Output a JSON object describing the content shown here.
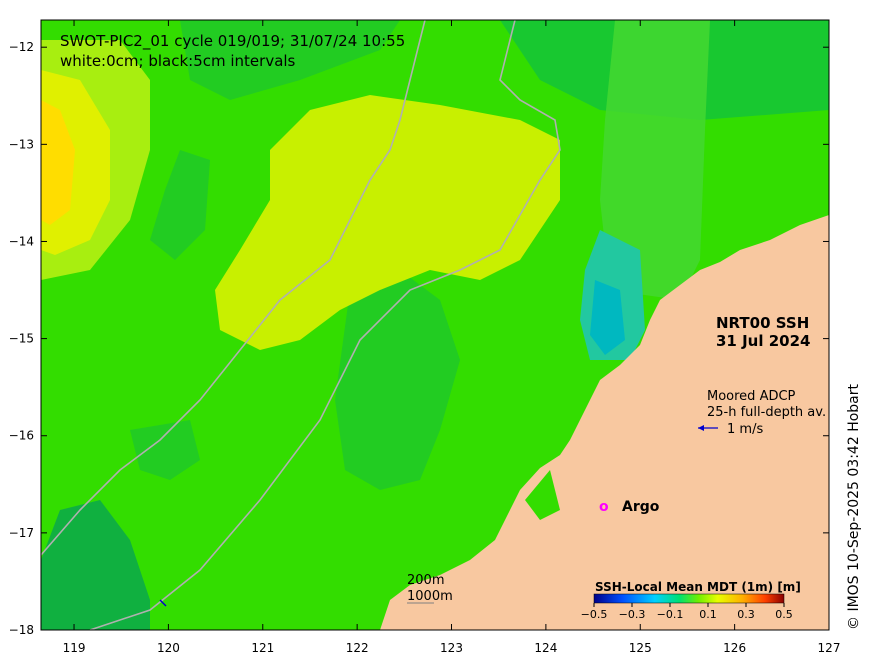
{
  "title": {
    "line1": "SWOT-PIC2_01 cycle 019/019; 31/07/24 10:55",
    "line2": "white:0cm; black:5cm intervals"
  },
  "product": {
    "name": "NRT00 SSH",
    "date": "31 Jul 2024"
  },
  "adcp": {
    "label1": "Moored ADCP",
    "label2": "25-h full-depth av.",
    "scale": "1 m/s"
  },
  "argo": {
    "symbol": "o",
    "label": "Argo"
  },
  "isobaths": {
    "shallow": "200m",
    "deep": "1000m"
  },
  "colorbar": {
    "title": "SSH-Local Mean MDT (1m) [m]",
    "ticks": [
      "−0.5",
      "−0.3",
      "−0.1",
      "0.1",
      "0.3",
      "0.5"
    ],
    "range": [
      -0.5,
      0.5
    ]
  },
  "axes": {
    "x_ticks": [
      "119",
      "120",
      "121",
      "122",
      "123",
      "124",
      "125",
      "126",
      "127"
    ],
    "y_ticks": [
      "−12",
      "−13",
      "−14",
      "−15",
      "−16",
      "−17",
      "−18"
    ],
    "x_range": [
      118.65,
      127.0
    ],
    "y_range": [
      -18.0,
      -11.72
    ]
  },
  "credit": "© IMOS 10-Sep-2025 03:42 Hobart",
  "colors": {
    "land": "#f8c8a0",
    "ocean_base": "#33dd00",
    "positive_anomaly": "#ffdd00",
    "negative_anomaly": "#00bbaa",
    "isobath": "#b0b0b0",
    "argo": "#ff00ff"
  }
}
